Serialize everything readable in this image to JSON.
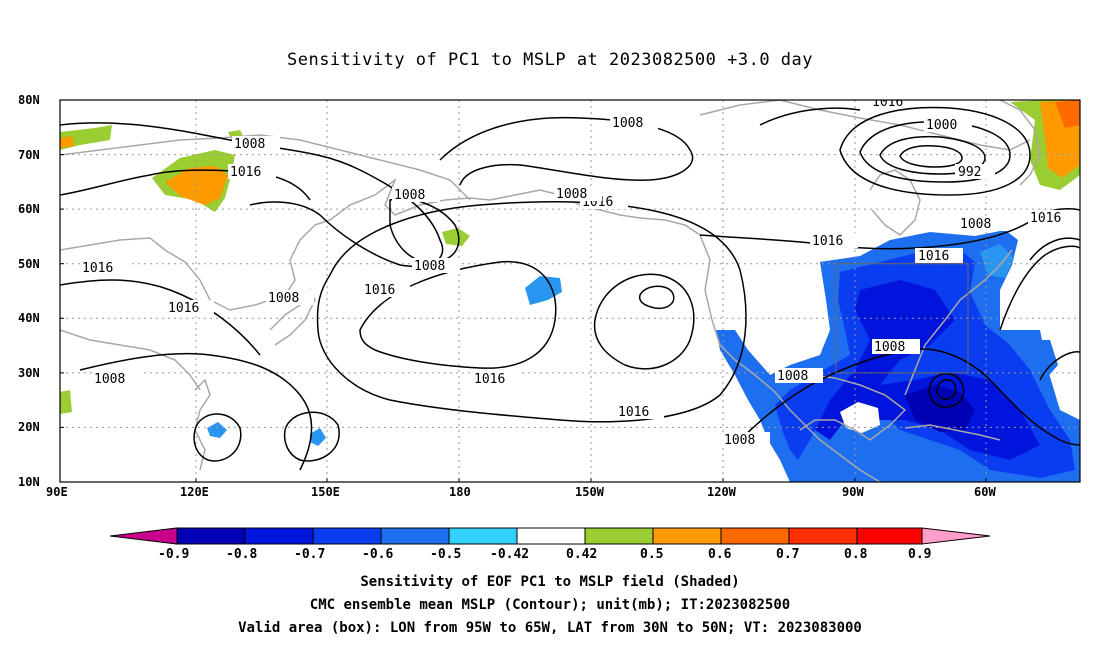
{
  "title": "Sensitivity of PC1 to MSLP at 2023082500 +3.0 day",
  "latitude_labels": [
    "80N",
    "70N",
    "60N",
    "50N",
    "40N",
    "30N",
    "20N",
    "10N"
  ],
  "longitude_labels": [
    "90E",
    "120E",
    "150E",
    "180",
    "150W",
    "120W",
    "90W",
    "60W"
  ],
  "colorbar": {
    "labels": [
      "-0.9",
      "-0.8",
      "-0.7",
      "-0.6",
      "-0.5",
      "-0.42",
      "0.42",
      "0.5",
      "0.6",
      "0.7",
      "0.8",
      "0.9"
    ],
    "colors": [
      "#c8008c",
      "#0000b4",
      "#0014dc",
      "#0a3cf0",
      "#1e6ef0",
      "#2896f0",
      "#32d2ff",
      "#ffffff",
      "#9acd32",
      "#ff9a00",
      "#ff6a00",
      "#ff3000",
      "#ff0000",
      "#ff9ec8"
    ]
  },
  "contour_labels": {
    "values": [
      "1008",
      "1016",
      "1008",
      "1008",
      "1016",
      "1016",
      "1016",
      "1016",
      "1008",
      "1008",
      "1016",
      "1008",
      "1008",
      "1016",
      "1016",
      "1008",
      "1008",
      "1008",
      "1000",
      "992",
      "1008",
      "1016",
      "1016",
      "1016"
    ]
  },
  "valid_box": {
    "lon_west": "95W",
    "lon_east": "65W",
    "lat_south": "30N",
    "lat_north": "50N"
  },
  "captions": {
    "line1": "Sensitivity of EOF PC1 to MSLP field (Shaded)",
    "line2": "CMC ensemble mean MSLP (Contour); unit(mb); IT:2023082500",
    "line3": "Valid area (box): LON from 95W to 65W, LAT from 30N to 50N; VT: 2023083000"
  }
}
